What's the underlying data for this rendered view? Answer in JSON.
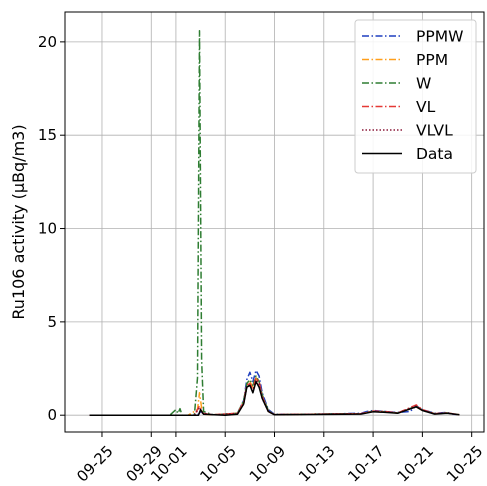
{
  "chart_data": {
    "type": "line",
    "title": "",
    "xlabel": "",
    "ylabel": "Ru106 activity (µBq/m3)",
    "xlim": [
      "2017-09-22",
      "2017-10-26"
    ],
    "ylim": [
      -0.9,
      21.6
    ],
    "x_ticks": [
      "2017-09-25",
      "2017-09-29",
      "2017-10-01",
      "2017-10-05",
      "2017-10-09",
      "2017-10-13",
      "2017-10-17",
      "2017-10-21",
      "2017-10-25"
    ],
    "x_tick_labels": [
      "09-25",
      "09-29",
      "10-01",
      "10-05",
      "10-09",
      "10-13",
      "10-17",
      "10-21",
      "10-25"
    ],
    "y_ticks": [
      0,
      5,
      10,
      15,
      20
    ],
    "y_tick_labels": [
      "0",
      "5",
      "10",
      "15",
      "20"
    ],
    "grid": true,
    "legend_position": "top-right",
    "series": [
      {
        "name": "PPMW",
        "color": "#1f3fbf",
        "style": "dashdot",
        "points": [
          [
            "2017-09-24",
            0
          ],
          [
            "2017-10-02",
            0
          ],
          [
            "2017-10-02T20:00",
            0.05
          ],
          [
            "2017-10-03",
            0.2
          ],
          [
            "2017-10-03T06:00",
            0.1
          ],
          [
            "2017-10-04",
            0.02
          ],
          [
            "2017-10-05",
            0.02
          ],
          [
            "2017-10-06",
            0.1
          ],
          [
            "2017-10-06T12:00",
            0.8
          ],
          [
            "2017-10-06T18:00",
            1.9
          ],
          [
            "2017-10-07",
            2.3
          ],
          [
            "2017-10-07T06:00",
            1.8
          ],
          [
            "2017-10-07T12:00",
            2.4
          ],
          [
            "2017-10-07T18:00",
            2.1
          ],
          [
            "2017-10-08",
            1.2
          ],
          [
            "2017-10-08T12:00",
            0.3
          ],
          [
            "2017-10-09",
            0.05
          ],
          [
            "2017-10-12",
            0.05
          ],
          [
            "2017-10-16",
            0.1
          ],
          [
            "2017-10-16T12:00",
            0.2
          ],
          [
            "2017-10-17",
            0.25
          ],
          [
            "2017-10-18",
            0.2
          ],
          [
            "2017-10-19",
            0.15
          ],
          [
            "2017-10-20",
            0.2
          ],
          [
            "2017-10-20T12:00",
            0.5
          ],
          [
            "2017-10-21",
            0.3
          ],
          [
            "2017-10-22",
            0.1
          ],
          [
            "2017-10-23",
            0.15
          ],
          [
            "2017-10-23T12:00",
            0.05
          ],
          [
            "2017-10-24",
            0.02
          ]
        ]
      },
      {
        "name": "PPM",
        "color": "#ff9f1c",
        "style": "dashdot",
        "points": [
          [
            "2017-09-24",
            0
          ],
          [
            "2017-10-02",
            0
          ],
          [
            "2017-10-02T18:00",
            0.3
          ],
          [
            "2017-10-02T22:00",
            1.2
          ],
          [
            "2017-10-03T02:00",
            0.4
          ],
          [
            "2017-10-03T08:00",
            0.05
          ],
          [
            "2017-10-04",
            0.02
          ],
          [
            "2017-10-06",
            0.1
          ],
          [
            "2017-10-06T12:00",
            0.7
          ],
          [
            "2017-10-06T18:00",
            1.6
          ],
          [
            "2017-10-07",
            1.8
          ],
          [
            "2017-10-07T06:00",
            1.5
          ],
          [
            "2017-10-07T12:00",
            2.0
          ],
          [
            "2017-10-07T18:00",
            1.7
          ],
          [
            "2017-10-08",
            1.0
          ],
          [
            "2017-10-08T12:00",
            0.2
          ],
          [
            "2017-10-09",
            0.03
          ],
          [
            "2017-10-16",
            0.08
          ],
          [
            "2017-10-17",
            0.2
          ],
          [
            "2017-10-18",
            0.18
          ],
          [
            "2017-10-19",
            0.12
          ],
          [
            "2017-10-20T12:00",
            0.45
          ],
          [
            "2017-10-21",
            0.25
          ],
          [
            "2017-10-22",
            0.08
          ],
          [
            "2017-10-23",
            0.12
          ],
          [
            "2017-10-24",
            0.02
          ]
        ]
      },
      {
        "name": "W",
        "color": "#2e7d32",
        "style": "dashdot",
        "points": [
          [
            "2017-09-24",
            0
          ],
          [
            "2017-09-30T12:00",
            0
          ],
          [
            "2017-10-01",
            0.3
          ],
          [
            "2017-10-01T04:00",
            0.1
          ],
          [
            "2017-10-01T08:00",
            0.35
          ],
          [
            "2017-10-01T12:00",
            0
          ],
          [
            "2017-10-02T12:00",
            0
          ],
          [
            "2017-10-02T18:00",
            2.0
          ],
          [
            "2017-10-02T22:00",
            20.6
          ],
          [
            "2017-10-03T02:00",
            3.0
          ],
          [
            "2017-10-03T06:00",
            0.2
          ],
          [
            "2017-10-04",
            0.02
          ],
          [
            "2017-10-06",
            0.1
          ],
          [
            "2017-10-06T12:00",
            0.8
          ],
          [
            "2017-10-06T18:00",
            1.7
          ],
          [
            "2017-10-07",
            1.9
          ],
          [
            "2017-10-07T06:00",
            1.6
          ],
          [
            "2017-10-07T12:00",
            2.1
          ],
          [
            "2017-10-07T18:00",
            1.8
          ],
          [
            "2017-10-08",
            1.1
          ],
          [
            "2017-10-08T12:00",
            0.25
          ],
          [
            "2017-10-09",
            0.03
          ],
          [
            "2017-10-16",
            0.08
          ],
          [
            "2017-10-17",
            0.22
          ],
          [
            "2017-10-18",
            0.18
          ],
          [
            "2017-10-19",
            0.12
          ],
          [
            "2017-10-20T12:00",
            0.48
          ],
          [
            "2017-10-21",
            0.28
          ],
          [
            "2017-10-22",
            0.08
          ],
          [
            "2017-10-23",
            0.12
          ],
          [
            "2017-10-24",
            0.02
          ]
        ]
      },
      {
        "name": "VL",
        "color": "#e53935",
        "style": "dashdot",
        "points": [
          [
            "2017-09-24",
            0
          ],
          [
            "2017-10-02T12:00",
            0
          ],
          [
            "2017-10-02T22:00",
            0.5
          ],
          [
            "2017-10-03T04:00",
            0.1
          ],
          [
            "2017-10-04",
            0.02
          ],
          [
            "2017-10-06",
            0.1
          ],
          [
            "2017-10-06T12:00",
            0.7
          ],
          [
            "2017-10-06T18:00",
            1.6
          ],
          [
            "2017-10-07",
            1.7
          ],
          [
            "2017-10-07T06:00",
            1.4
          ],
          [
            "2017-10-07T12:00",
            2.0
          ],
          [
            "2017-10-07T18:00",
            1.8
          ],
          [
            "2017-10-08",
            1.0
          ],
          [
            "2017-10-08T12:00",
            0.2
          ],
          [
            "2017-10-09",
            0.03
          ],
          [
            "2017-10-16",
            0.08
          ],
          [
            "2017-10-17",
            0.22
          ],
          [
            "2017-10-18",
            0.2
          ],
          [
            "2017-10-19",
            0.12
          ],
          [
            "2017-10-20T12:00",
            0.55
          ],
          [
            "2017-10-21",
            0.3
          ],
          [
            "2017-10-22",
            0.08
          ],
          [
            "2017-10-23",
            0.12
          ],
          [
            "2017-10-24",
            0.02
          ]
        ]
      },
      {
        "name": "VLVL",
        "color": "#8b1a3a",
        "style": "dotted",
        "points": [
          [
            "2017-09-24",
            0
          ],
          [
            "2017-10-02T12:00",
            0
          ],
          [
            "2017-10-02T22:00",
            0.4
          ],
          [
            "2017-10-03T04:00",
            0.1
          ],
          [
            "2017-10-04",
            0.02
          ],
          [
            "2017-10-06",
            0.1
          ],
          [
            "2017-10-06T12:00",
            0.6
          ],
          [
            "2017-10-06T18:00",
            1.5
          ],
          [
            "2017-10-07",
            1.6
          ],
          [
            "2017-10-07T06:00",
            1.3
          ],
          [
            "2017-10-07T12:00",
            1.9
          ],
          [
            "2017-10-07T18:00",
            1.7
          ],
          [
            "2017-10-08",
            0.9
          ],
          [
            "2017-10-08T12:00",
            0.2
          ],
          [
            "2017-10-09",
            0.03
          ],
          [
            "2017-10-16",
            0.08
          ],
          [
            "2017-10-17",
            0.2
          ],
          [
            "2017-10-18",
            0.18
          ],
          [
            "2017-10-19",
            0.12
          ],
          [
            "2017-10-20T12:00",
            0.5
          ],
          [
            "2017-10-21",
            0.28
          ],
          [
            "2017-10-22",
            0.08
          ],
          [
            "2017-10-23",
            0.12
          ],
          [
            "2017-10-24",
            0.02
          ]
        ]
      },
      {
        "name": "Data",
        "color": "#000000",
        "style": "solid",
        "points": [
          [
            "2017-09-24",
            0
          ],
          [
            "2017-10-02T20:00",
            0
          ],
          [
            "2017-10-03",
            0.3
          ],
          [
            "2017-10-03T06:00",
            0.05
          ],
          [
            "2017-10-05",
            0
          ],
          [
            "2017-10-06",
            0.05
          ],
          [
            "2017-10-06T12:00",
            0.6
          ],
          [
            "2017-10-06T18:00",
            1.5
          ],
          [
            "2017-10-07",
            1.6
          ],
          [
            "2017-10-07T06:00",
            1.2
          ],
          [
            "2017-10-07T12:00",
            1.8
          ],
          [
            "2017-10-07T18:00",
            1.5
          ],
          [
            "2017-10-08",
            0.9
          ],
          [
            "2017-10-08T12:00",
            0.2
          ],
          [
            "2017-10-09",
            0.02
          ],
          [
            "2017-10-16",
            0.06
          ],
          [
            "2017-10-17",
            0.18
          ],
          [
            "2017-10-18",
            0.15
          ],
          [
            "2017-10-19",
            0.1
          ],
          [
            "2017-10-20T12:00",
            0.45
          ],
          [
            "2017-10-21",
            0.25
          ],
          [
            "2017-10-22",
            0.06
          ],
          [
            "2017-10-23",
            0.1
          ],
          [
            "2017-10-24",
            0.02
          ]
        ]
      }
    ]
  }
}
